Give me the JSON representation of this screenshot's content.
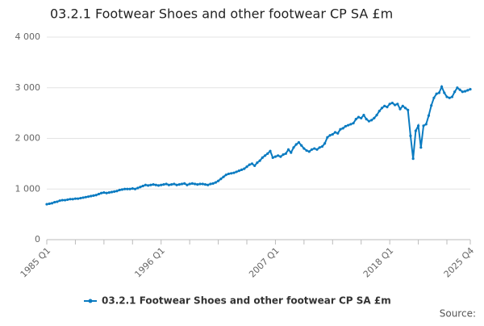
{
  "chart_data": {
    "type": "line",
    "title": "03.2.1 Footwear Shoes and other footwear CP SA £m",
    "source": "Source:",
    "categories": [
      "1985 Q1",
      null,
      null,
      null,
      null,
      null,
      null,
      null,
      null,
      null,
      null,
      null,
      null,
      null,
      null,
      null,
      null,
      null,
      null,
      null,
      null,
      null,
      null,
      null,
      null,
      null,
      null,
      null,
      null,
      null,
      null,
      null,
      null,
      null,
      null,
      null,
      null,
      null,
      null,
      null,
      null,
      null,
      null,
      null,
      "1996 Q1",
      null,
      null,
      null,
      null,
      null,
      null,
      null,
      null,
      null,
      null,
      null,
      null,
      null,
      null,
      null,
      null,
      null,
      null,
      null,
      null,
      null,
      null,
      null,
      null,
      null,
      null,
      null,
      null,
      null,
      null,
      null,
      null,
      null,
      null,
      null,
      null,
      null,
      null,
      null,
      null,
      null,
      null,
      null,
      "2007 Q1",
      null,
      null,
      null,
      null,
      null,
      null,
      null,
      null,
      null,
      null,
      null,
      null,
      null,
      null,
      null,
      null,
      null,
      null,
      null,
      null,
      null,
      null,
      null,
      null,
      null,
      null,
      null,
      null,
      null,
      null,
      null,
      null,
      null,
      null,
      null,
      null,
      null,
      null,
      null,
      null,
      null,
      null,
      null,
      "2018 Q1",
      null,
      null,
      null,
      null,
      null,
      null,
      null,
      null,
      null,
      null,
      null,
      null,
      null,
      null,
      null,
      null,
      null,
      null,
      null,
      null,
      null,
      null,
      null,
      null,
      null,
      null,
      null,
      null,
      null,
      null,
      "2025 Q4"
    ],
    "series": [
      {
        "name": "03.2.1 Footwear Shoes and other footwear CP SA £m",
        "color": "#0a7bc1",
        "values": [
          700,
          710,
          720,
          740,
          750,
          770,
          780,
          780,
          790,
          800,
          800,
          810,
          810,
          820,
          830,
          840,
          850,
          860,
          870,
          880,
          900,
          920,
          930,
          920,
          930,
          940,
          950,
          960,
          980,
          990,
          1000,
          1000,
          1000,
          1010,
          1000,
          1020,
          1040,
          1060,
          1080,
          1070,
          1080,
          1090,
          1080,
          1070,
          1080,
          1090,
          1100,
          1080,
          1090,
          1100,
          1080,
          1090,
          1100,
          1110,
          1080,
          1100,
          1110,
          1100,
          1090,
          1100,
          1100,
          1090,
          1080,
          1100,
          1110,
          1130,
          1160,
          1200,
          1240,
          1280,
          1300,
          1310,
          1320,
          1340,
          1360,
          1380,
          1400,
          1440,
          1480,
          1500,
          1460,
          1520,
          1560,
          1620,
          1660,
          1700,
          1750,
          1620,
          1640,
          1660,
          1640,
          1680,
          1700,
          1780,
          1720,
          1820,
          1880,
          1920,
          1860,
          1800,
          1760,
          1740,
          1780,
          1800,
          1780,
          1820,
          1840,
          1900,
          2020,
          2060,
          2080,
          2120,
          2100,
          2180,
          2200,
          2240,
          2260,
          2280,
          2300,
          2380,
          2420,
          2400,
          2460,
          2380,
          2340,
          2360,
          2400,
          2460,
          2540,
          2600,
          2640,
          2620,
          2680,
          2700,
          2660,
          2680,
          2580,
          2640,
          2600,
          2560,
          2050,
          1600,
          2150,
          2250,
          1820,
          2250,
          2280,
          2450,
          2650,
          2800,
          2880,
          2900,
          3020,
          2900,
          2820,
          2800,
          2820,
          2920,
          3000,
          2960,
          2920,
          2930,
          2950,
          2970
        ]
      }
    ],
    "ylim": [
      0,
      4000
    ],
    "yticks": [
      {
        "value": 0,
        "label": "0"
      },
      {
        "value": 1000,
        "label": "1 000"
      },
      {
        "value": 2000,
        "label": "2 000"
      },
      {
        "value": 3000,
        "label": "3 000"
      },
      {
        "value": 4000,
        "label": "4 000"
      }
    ],
    "grid": true
  }
}
